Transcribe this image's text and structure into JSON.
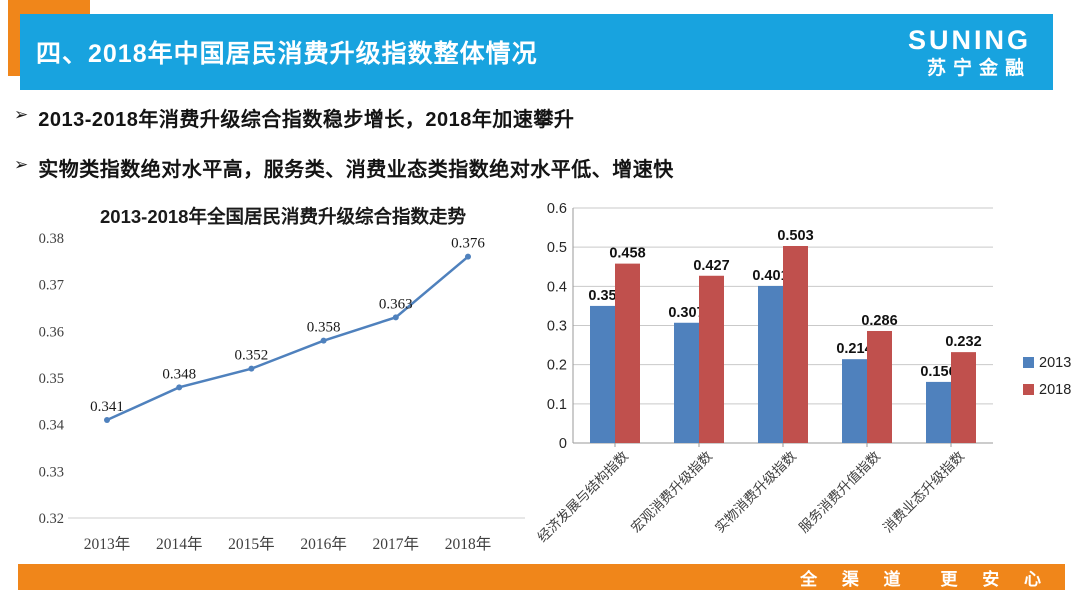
{
  "header": {
    "title": "四、2018年中国居民消费升级指数整体情况",
    "logo_brand": "SUNING",
    "logo_sub": "苏宁金融"
  },
  "bullets": {
    "marker": "➢",
    "items": [
      "2013-2018年消费升级综合指数稳步增长，2018年加速攀升",
      "实物类指数绝对水平高，服务类、消费业态类指数绝对水平低、增速快"
    ]
  },
  "footer": {
    "left": "全 渠 道",
    "right": "更 安 心"
  },
  "colors": {
    "banner_blue": "#18a3df",
    "accent_orange": "#f0861a",
    "bar_2013": "#4f81bd",
    "bar_2018": "#c0504d",
    "line": "#4f81bd",
    "gridline": "#c9c9c9",
    "axis": "#9a9a9a",
    "axis_light": "#cfcfcf"
  },
  "chart_data": [
    {
      "type": "line",
      "title": "2013-2018年全国居民消费升级综合指数走势",
      "categories": [
        "2013年",
        "2014年",
        "2015年",
        "2016年",
        "2017年",
        "2018年"
      ],
      "values": [
        0.341,
        0.348,
        0.352,
        0.358,
        0.363,
        0.376
      ],
      "labels": [
        "0.341",
        "0.348",
        "0.352",
        "0.358",
        "0.363",
        "0.376"
      ],
      "xlabel": "",
      "ylabel": "",
      "ylim": [
        0.32,
        0.38
      ],
      "yticks": [
        "0.32",
        "0.33",
        "0.34",
        "0.35",
        "0.36",
        "0.37",
        "0.38"
      ],
      "grid": false,
      "line_color": "#4f81bd"
    },
    {
      "type": "bar",
      "title": "",
      "categories": [
        "经济发展与结构指数",
        "宏观消费升级指数",
        "实物消费升级指数",
        "服务消费升值指数",
        "消费业态升级指数"
      ],
      "series": [
        {
          "name": "2013",
          "color": "#4f81bd",
          "values": [
            0.35,
            0.307,
            0.401,
            0.214,
            0.156
          ],
          "labels": [
            "0.35",
            "0.307",
            "0.401",
            "0.214",
            "0.156"
          ]
        },
        {
          "name": "2018",
          "color": "#c0504d",
          "values": [
            0.458,
            0.427,
            0.503,
            0.286,
            0.232
          ],
          "labels": [
            "0.458",
            "0.427",
            "0.503",
            "0.286",
            "0.232"
          ]
        }
      ],
      "ylim": [
        0,
        0.6
      ],
      "yticks": [
        "0",
        "0.1",
        "0.2",
        "0.3",
        "0.4",
        "0.5",
        "0.6"
      ],
      "grid": true,
      "legend_position": "right"
    }
  ]
}
